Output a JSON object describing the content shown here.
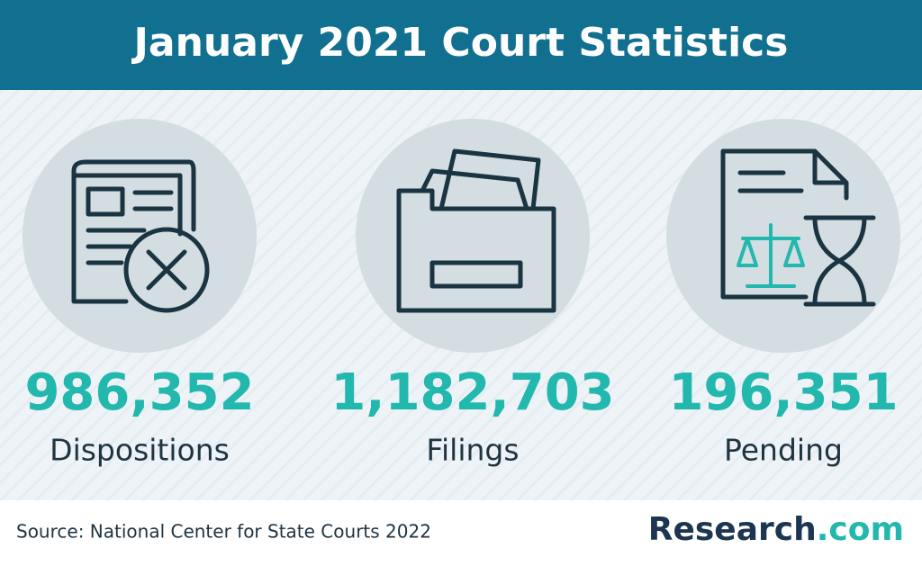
{
  "header": {
    "title": "January 2021 Court Statistics"
  },
  "stats": [
    {
      "value": "986,352",
      "label": "Dispositions"
    },
    {
      "value": "1,182,703",
      "label": "Filings"
    },
    {
      "value": "196,351",
      "label": "Pending"
    }
  ],
  "footer": {
    "source": "Source: National Center for State Courts 2022",
    "logo": {
      "name": "Research",
      "suffix": ".com"
    }
  }
}
